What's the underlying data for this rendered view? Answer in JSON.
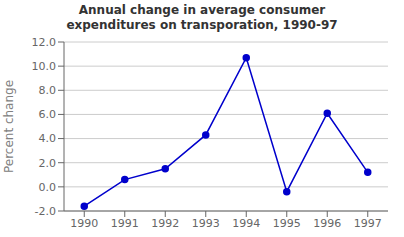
{
  "chart_data": {
    "type": "line",
    "title": "Annual change in average consumer\nexpenditures on transporation, 1990-97",
    "ylabel": "Percent change",
    "x": [
      1990,
      1991,
      1992,
      1993,
      1994,
      1995,
      1996,
      1997
    ],
    "values": [
      -1.6,
      0.6,
      1.5,
      4.3,
      10.7,
      -0.4,
      6.1,
      1.2
    ],
    "xlim": [
      1989.5,
      1997.5
    ],
    "xticks": [
      1990,
      1991,
      1992,
      1993,
      1994,
      1995,
      1996,
      1997
    ],
    "ylim": [
      -2.0,
      12.0
    ],
    "yticks": [
      {
        "value": -2.0,
        "label": "-2.0"
      },
      {
        "value": 0.0,
        "label": "0.0"
      },
      {
        "value": 2.0,
        "label": "2.0"
      },
      {
        "value": 4.0,
        "label": "4.0"
      },
      {
        "value": 6.0,
        "label": "6.0"
      },
      {
        "value": 8.0,
        "label": "8.0"
      },
      {
        "value": 10.0,
        "label": "10.0"
      },
      {
        "value": 12.0,
        "label": "12.0"
      }
    ],
    "color": "#0000cc",
    "marker": "circle",
    "grid": true
  }
}
